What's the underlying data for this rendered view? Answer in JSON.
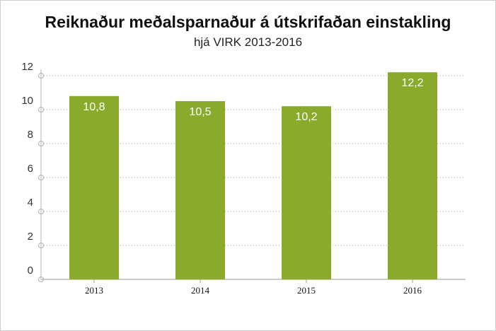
{
  "chart_data": {
    "type": "bar",
    "title": "Reiknaður meðalsparnaður á útskrifaðan einstakling",
    "subtitle": "hjá VIRK 2013-2016",
    "categories": [
      "2013",
      "2014",
      "2015",
      "2016"
    ],
    "values": [
      10.8,
      10.5,
      10.2,
      12.2
    ],
    "data_labels": [
      "10,8",
      "10,5",
      "10,2",
      "12,2"
    ],
    "ylim": [
      0,
      12
    ],
    "yticks": [
      0,
      2,
      4,
      6,
      8,
      10,
      12
    ],
    "xlabel": "",
    "ylabel": "",
    "grid": true,
    "bar_color": "#8aaa2c"
  }
}
